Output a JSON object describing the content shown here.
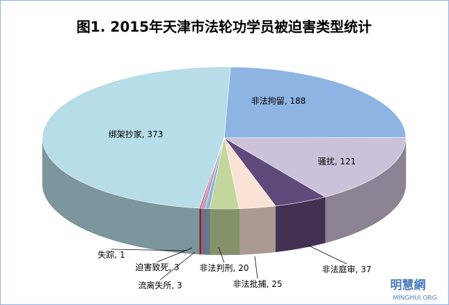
{
  "chart_data": {
    "type": "pie3d",
    "title": "图1. 2015年天津市法轮功学员被迫害类型统计",
    "categories": [
      "非法拘留",
      "骚扰",
      "非法庭审",
      "非法批捕",
      "非法判刑",
      "流离失所",
      "迫害致死",
      "失踪",
      "绑架抄家"
    ],
    "values": [
      188,
      121,
      37,
      25,
      20,
      3,
      3,
      1,
      373
    ],
    "colors": [
      "#8eb4e3",
      "#ccc1da",
      "#604a7b",
      "#fbe2d5",
      "#c3d69b",
      "#95b3d7",
      "#b3a2c7",
      "#e32020",
      "#b7dde8"
    ],
    "label_separator": ", ",
    "watermark": {
      "name": "明慧網",
      "site": "MINGHUI.ORG"
    }
  }
}
